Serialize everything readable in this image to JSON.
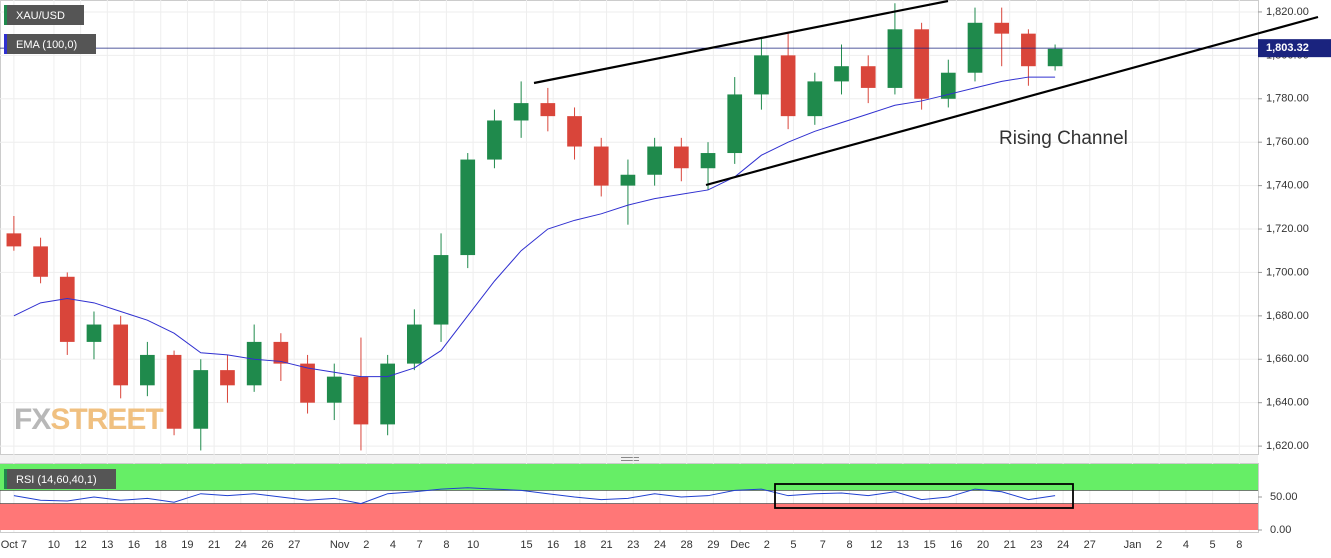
{
  "chart_data": [
    {
      "type": "candlestick",
      "legend": [
        "XAU/USD",
        "EMA (100,0)"
      ],
      "xlim": [
        -0.52,
        46.6
      ],
      "xticks": [
        {
          "value": 0,
          "label": "Oct 7"
        },
        {
          "value": 1.5,
          "label": "10"
        },
        {
          "value": 2.5,
          "label": "12"
        },
        {
          "value": 3.5,
          "label": "13"
        },
        {
          "value": 4.5,
          "label": "16"
        },
        {
          "value": 5.5,
          "label": "18"
        },
        {
          "value": 6.5,
          "label": "19"
        },
        {
          "value": 7.5,
          "label": "21"
        },
        {
          "value": 8.5,
          "label": "24"
        },
        {
          "value": 9.5,
          "label": "26"
        },
        {
          "value": 10.5,
          "label": "27"
        },
        {
          "value": 12.2,
          "label": "Nov"
        },
        {
          "value": 13.2,
          "label": "2"
        },
        {
          "value": 14.2,
          "label": "4"
        },
        {
          "value": 15.2,
          "label": "7"
        },
        {
          "value": 16.2,
          "label": "8"
        },
        {
          "value": 17.2,
          "label": "10"
        },
        {
          "value": 19.2,
          "label": "15"
        },
        {
          "value": 20.2,
          "label": "16"
        },
        {
          "value": 21.2,
          "label": "18"
        },
        {
          "value": 22.2,
          "label": "21"
        },
        {
          "value": 23.2,
          "label": "23"
        },
        {
          "value": 24.2,
          "label": "24"
        },
        {
          "value": 25.2,
          "label": "28"
        },
        {
          "value": 26.2,
          "label": "29"
        },
        {
          "value": 27.2,
          "label": "Dec"
        },
        {
          "value": 28.2,
          "label": "2"
        },
        {
          "value": 29.2,
          "label": "5"
        },
        {
          "value": 30.3,
          "label": "7"
        },
        {
          "value": 31.3,
          "label": "8"
        },
        {
          "value": 32.3,
          "label": "12"
        },
        {
          "value": 33.3,
          "label": "13"
        },
        {
          "value": 34.3,
          "label": "15"
        },
        {
          "value": 35.3,
          "label": "16"
        },
        {
          "value": 36.3,
          "label": "20"
        },
        {
          "value": 37.3,
          "label": "21"
        },
        {
          "value": 38.3,
          "label": "23"
        },
        {
          "value": 39.3,
          "label": "24"
        },
        {
          "value": 40.3,
          "label": "27"
        },
        {
          "value": 41.9,
          "label": "Jan"
        },
        {
          "value": 42.9,
          "label": "2"
        },
        {
          "value": 43.9,
          "label": "4"
        },
        {
          "value": 44.9,
          "label": "5"
        },
        {
          "value": 45.9,
          "label": "8"
        }
      ],
      "ylim": [
        1615.9,
        1825.5
      ],
      "yticks": [
        {
          "value": 1620,
          "label": "1,620.00"
        },
        {
          "value": 1640,
          "label": "1,640.00"
        },
        {
          "value": 1660,
          "label": "1,660.00"
        },
        {
          "value": 1680,
          "label": "1,680.00"
        },
        {
          "value": 1700,
          "label": "1,700.00"
        },
        {
          "value": 1720,
          "label": "1,720.00"
        },
        {
          "value": 1740,
          "label": "1,740.00"
        },
        {
          "value": 1760,
          "label": "1,760.00"
        },
        {
          "value": 1780,
          "label": "1,780.00"
        },
        {
          "value": 1800,
          "label": "1,800.00"
        },
        {
          "value": 1820,
          "label": "1,820.00"
        }
      ],
      "x": [
        0,
        1,
        2,
        3,
        4,
        5,
        6,
        7,
        8,
        9,
        10,
        11,
        12,
        13,
        14,
        15,
        16,
        17,
        18,
        19,
        20,
        21,
        22,
        23,
        24,
        25,
        26,
        27,
        28,
        29,
        30,
        31,
        32,
        33,
        34,
        35,
        36,
        37,
        38,
        39
      ],
      "open": [
        1718,
        1712,
        1698,
        1668,
        1676,
        1648,
        1662,
        1628,
        1655,
        1648,
        1668,
        1658,
        1640,
        1652,
        1630,
        1658,
        1676,
        1708,
        1752,
        1770,
        1778,
        1772,
        1758,
        1740,
        1745,
        1758,
        1748,
        1755,
        1782,
        1800,
        1772,
        1788,
        1795,
        1785,
        1812,
        1780,
        1792,
        1815,
        1810,
        1795
      ],
      "high": [
        1726,
        1716,
        1700,
        1682,
        1680,
        1668,
        1664,
        1660,
        1662,
        1676,
        1672,
        1662,
        1658,
        1670,
        1662,
        1683,
        1718,
        1755,
        1775,
        1788,
        1785,
        1776,
        1762,
        1752,
        1762,
        1762,
        1760,
        1790,
        1808,
        1810,
        1792,
        1805,
        1800,
        1824,
        1815,
        1798,
        1822,
        1822,
        1812,
        1805
      ],
      "low": [
        1710,
        1695,
        1662,
        1660,
        1642,
        1643,
        1625,
        1618,
        1640,
        1645,
        1650,
        1635,
        1632,
        1618,
        1625,
        1655,
        1668,
        1702,
        1748,
        1762,
        1765,
        1752,
        1735,
        1722,
        1740,
        1742,
        1738,
        1750,
        1775,
        1766,
        1768,
        1782,
        1778,
        1782,
        1775,
        1776,
        1788,
        1795,
        1786,
        1793
      ],
      "close": [
        1712,
        1698,
        1668,
        1676,
        1648,
        1662,
        1628,
        1655,
        1648,
        1668,
        1658,
        1640,
        1652,
        1630,
        1658,
        1676,
        1708,
        1752,
        1770,
        1778,
        1772,
        1758,
        1740,
        1745,
        1758,
        1748,
        1755,
        1782,
        1800,
        1772,
        1788,
        1795,
        1785,
        1812,
        1780,
        1792,
        1815,
        1810,
        1795,
        1803
      ],
      "up_color": "#1f8a4c",
      "down_color": "#d9453a",
      "ema": {
        "color": "#3030d0",
        "values": [
          1680,
          1686,
          1688,
          1686,
          1682,
          1678,
          1672,
          1663,
          1662,
          1660,
          1659,
          1656,
          1654,
          1652,
          1652,
          1656,
          1664,
          1680,
          1696,
          1710,
          1720,
          1724,
          1727,
          1731,
          1734,
          1736,
          1738,
          1744,
          1754,
          1760,
          1765,
          1769,
          1773,
          1777,
          1779,
          1782,
          1785,
          1788,
          1790,
          1790
        ]
      },
      "last_price": {
        "value": 1803.32,
        "label": "1,803.32"
      },
      "annotation": "Rising Channel",
      "watermark": [
        "FX",
        "STREET"
      ]
    },
    {
      "type": "line",
      "title": "RSI (14,60,40,1)",
      "ylim": [
        0,
        100
      ],
      "yticks": [
        {
          "value": 0,
          "label": "0.00"
        },
        {
          "value": 50,
          "label": "50.00"
        }
      ],
      "upper_band": 60,
      "lower_band": 40,
      "color": "#2040d0",
      "x": [
        0,
        1,
        2,
        3,
        4,
        5,
        6,
        7,
        8,
        9,
        10,
        11,
        12,
        13,
        14,
        15,
        16,
        17,
        18,
        19,
        20,
        21,
        22,
        23,
        24,
        25,
        26,
        27,
        28,
        29,
        30,
        31,
        32,
        33,
        34,
        35,
        36,
        37,
        38,
        39
      ],
      "values": [
        52,
        45,
        44,
        50,
        45,
        48,
        42,
        55,
        52,
        55,
        50,
        45,
        48,
        40,
        55,
        58,
        62,
        64,
        62,
        60,
        55,
        50,
        46,
        48,
        55,
        50,
        52,
        60,
        62,
        52,
        55,
        56,
        52,
        58,
        46,
        50,
        62,
        58,
        46,
        52
      ]
    }
  ]
}
